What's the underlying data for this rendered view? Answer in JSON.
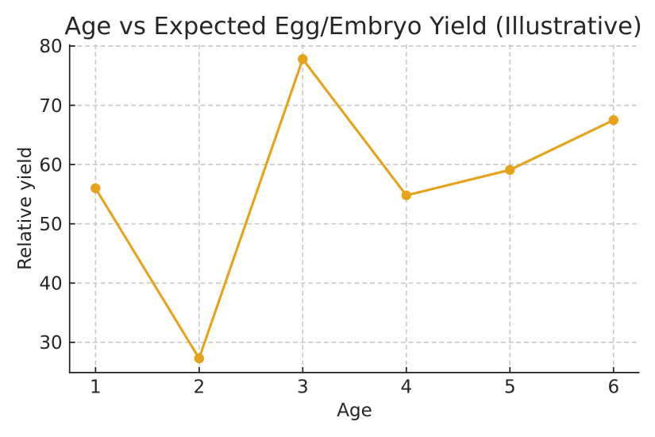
{
  "chart_data": {
    "type": "line",
    "title": "Age vs Expected Egg/Embryo Yield (Illustrative)",
    "xlabel": "Age",
    "ylabel": "Relative yield",
    "x": [
      1,
      2,
      3,
      4,
      5,
      6
    ],
    "values": [
      56.0,
      27.3,
      77.8,
      54.8,
      59.1,
      67.5
    ],
    "xticks": [
      1,
      2,
      3,
      4,
      5,
      6
    ],
    "yticks": [
      30,
      40,
      50,
      60,
      70,
      80
    ],
    "xlim": [
      0.75,
      6.25
    ],
    "ylim": [
      24.9,
      80.3
    ],
    "grid": true,
    "grid_style": "dashed",
    "legend": null,
    "marker": "circle",
    "colors": {
      "line": "#E6A21A",
      "marker": "#E6A21A",
      "grid": "#c8c8c8",
      "spine": "#1f1f1f",
      "tick": "#1f1f1f",
      "text": "#262626",
      "background": "#ffffff"
    }
  }
}
